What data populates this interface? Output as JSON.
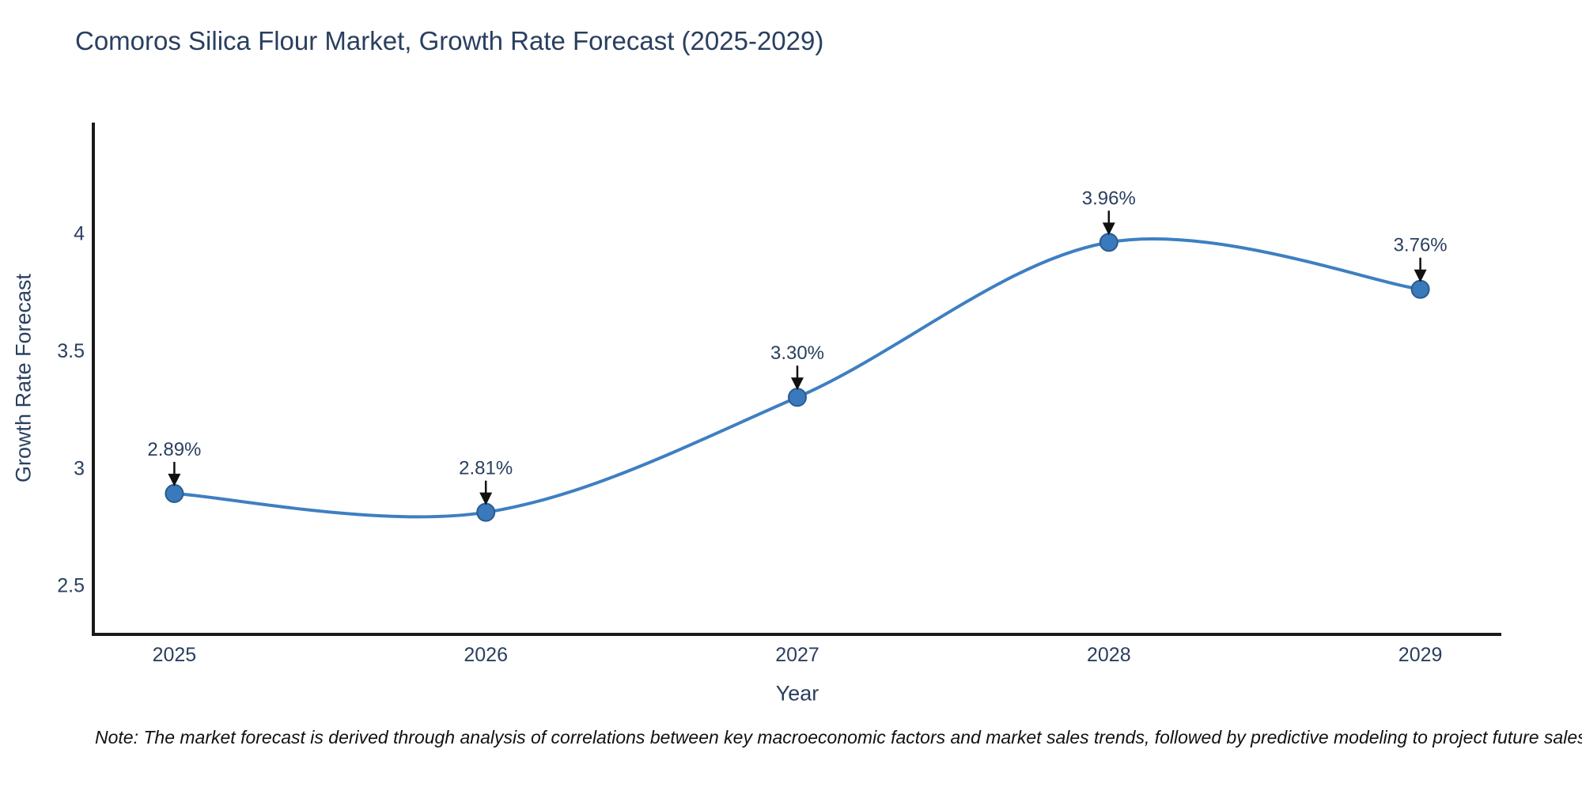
{
  "chart_data": {
    "type": "line",
    "title": "Comoros Silica Flour Market, Growth Rate Forecast (2025-2029)",
    "xlabel": "Year",
    "ylabel": "Growth Rate Forecast",
    "x": [
      2025,
      2026,
      2027,
      2028,
      2029
    ],
    "values": [
      2.89,
      2.81,
      3.3,
      3.96,
      3.76
    ],
    "point_labels": [
      "2.89%",
      "2.81%",
      "3.30%",
      "3.96%",
      "3.76%"
    ],
    "x_tick_labels": [
      "2025",
      "2026",
      "2027",
      "2028",
      "2029"
    ],
    "y_ticks": [
      2.5,
      3,
      3.5,
      4
    ],
    "y_tick_labels": [
      "2.5",
      "3",
      "3.5",
      "4"
    ],
    "xlim": [
      2024.74,
      2029.26
    ],
    "ylim": [
      2.29,
      4.47
    ],
    "grid": false,
    "legend": false,
    "line_color": "#3e7fc1",
    "marker_fill": "#3a79bc",
    "marker_edge": "#2b5c8f",
    "annotation_arrow_color": "#111111",
    "text_color": "#2a3f5f",
    "axis_color": "#1a1a1a"
  },
  "note": {
    "text": "Note: The market forecast is derived through analysis of correlations between key macroeconomic factors and market sales trends, followed by predictive modeling to project future sales"
  }
}
